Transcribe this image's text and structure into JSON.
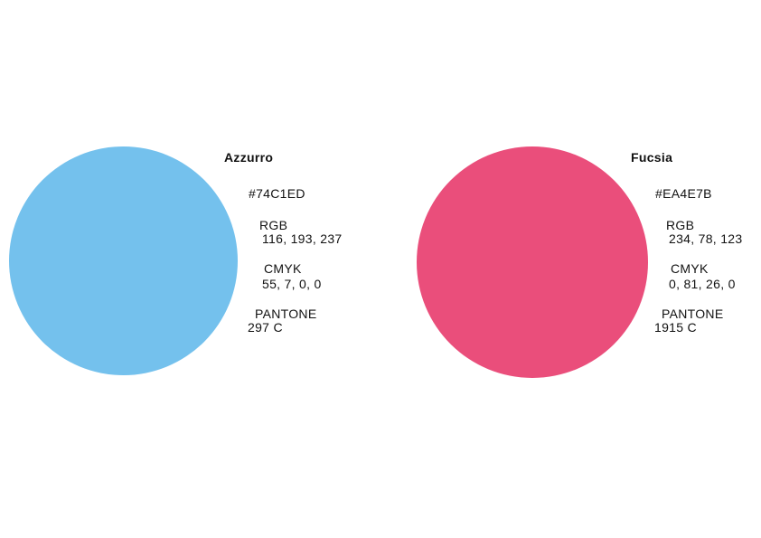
{
  "page": {
    "background": "#ffffff",
    "text_color": "#111111"
  },
  "swatches": [
    {
      "name": "Azzurro",
      "hex": "#74C1ED",
      "color": "#74C1ED",
      "rgb": {
        "label": "RGB",
        "value": "116, 193, 237"
      },
      "cmyk": {
        "label": "CMYK",
        "value": "55, 7, 0, 0"
      },
      "pantone": {
        "label": "PANTONE",
        "value": "297 C"
      }
    },
    {
      "name": "Fucsia",
      "hex": "#EA4E7B",
      "color": "#EA4E7B",
      "rgb": {
        "label": "RGB",
        "value": "234, 78, 123"
      },
      "cmyk": {
        "label": "CMYK",
        "value": "0, 81, 26, 0"
      },
      "pantone": {
        "label": "PANTONE",
        "value": "1915 C"
      }
    }
  ]
}
